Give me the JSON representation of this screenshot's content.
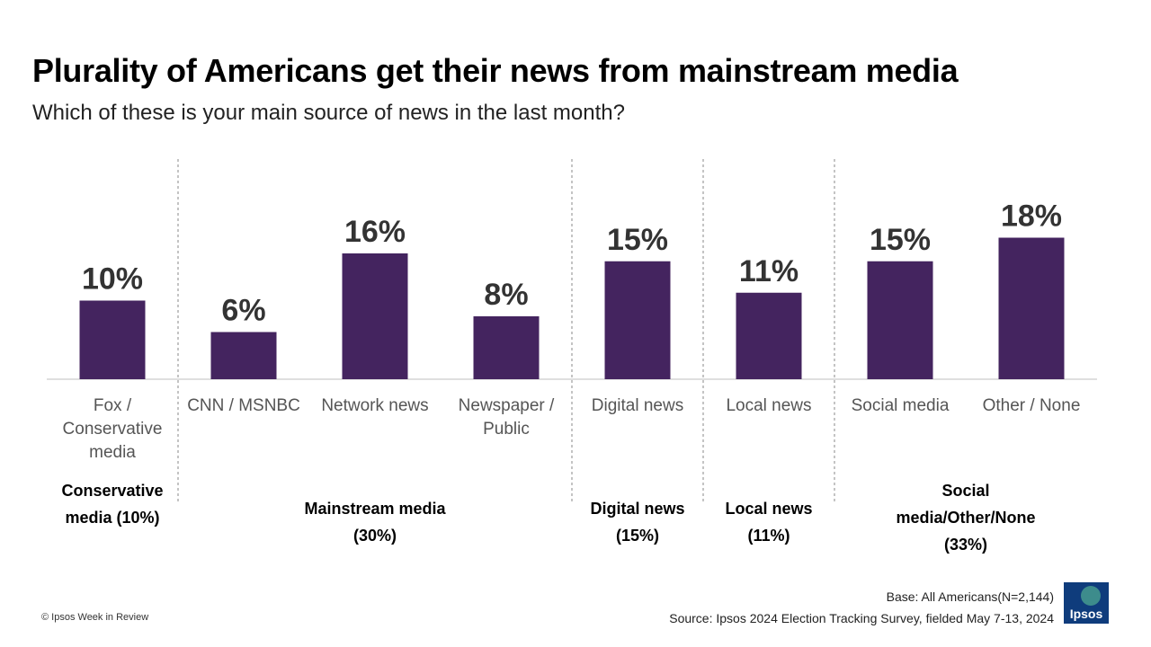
{
  "header": {
    "title": "Plurality of Americans get their news from mainstream media",
    "subtitle": "Which of these is your main source of news in the last month?"
  },
  "chart_data": {
    "type": "bar",
    "categories": [
      "Fox / Conservative media",
      "CNN / MSNBC",
      "Network news",
      "Newspaper / Public",
      "Digital news",
      "Local news",
      "Social media",
      "Other / None"
    ],
    "category_lines": [
      [
        "Fox /",
        "Conservative",
        "media"
      ],
      [
        "CNN / MSNBC"
      ],
      [
        "Network news"
      ],
      [
        "Newspaper /",
        "Public"
      ],
      [
        "Digital news"
      ],
      [
        "Local news"
      ],
      [
        "Social media"
      ],
      [
        "Other / None"
      ]
    ],
    "values": [
      10,
      6,
      16,
      8,
      15,
      11,
      15,
      18
    ],
    "data_labels": [
      "10%",
      "6%",
      "16%",
      "8%",
      "15%",
      "11%",
      "15%",
      "18%"
    ],
    "bar_color": "#44245f",
    "ylim": [
      0,
      20
    ],
    "groups": [
      {
        "label": "Conservative media (10%)",
        "lines": [
          "Conservative",
          "media (10%)"
        ],
        "start": 0,
        "end": 0
      },
      {
        "label": "Mainstream media (30%)",
        "lines": [
          "Mainstream media",
          "(30%)"
        ],
        "start": 1,
        "end": 3
      },
      {
        "label": "Digital news (15%)",
        "lines": [
          "Digital news",
          "(15%)"
        ],
        "start": 4,
        "end": 4
      },
      {
        "label": "Local news (11%)",
        "lines": [
          "Local news",
          "(11%)"
        ],
        "start": 5,
        "end": 5
      },
      {
        "label": "Social media/Other/None (33%)",
        "lines": [
          "Social",
          "media/Other/None",
          "(33%)"
        ],
        "start": 6,
        "end": 7
      }
    ]
  },
  "footer": {
    "copyright": "© Ipsos Week in Review",
    "base": "Base: All Americans(N=2,144)",
    "source": "Source: Ipsos 2024 Election Tracking Survey, fielded May 7-13, 2024",
    "logo_text": "Ipsos",
    "logo_color": "#0f3c7c"
  }
}
